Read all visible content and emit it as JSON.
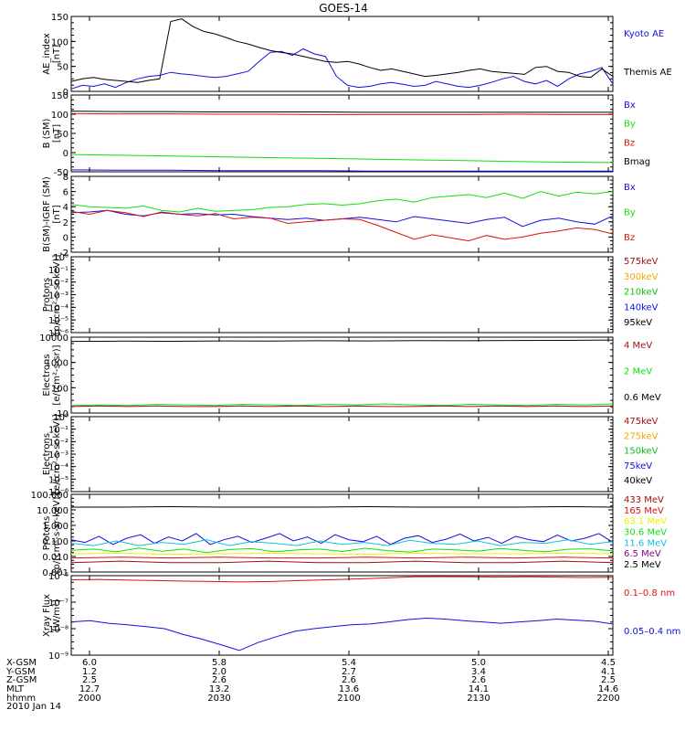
{
  "title": "GOES-14",
  "colors": {
    "black": "#000000",
    "blue": "#1010e0",
    "red": "#e01010",
    "green": "#10e010",
    "orange": "#f0a800",
    "yellow": "#f0f000",
    "darkred": "#a01010",
    "cyan": "#10c0e0",
    "purple": "#900090"
  },
  "chart_data": [
    {
      "type": "line",
      "ylabel": [
        "AE_index",
        "[nT]"
      ],
      "ylim": [
        0,
        150
      ],
      "yticks": [
        "0",
        "50",
        "100",
        "150"
      ],
      "legend": [
        {
          "label": "Kyoto AE",
          "color": "#1010e0"
        },
        {
          "label": "Themis AE",
          "color": "#000000"
        }
      ],
      "series": [
        {
          "name": "Kyoto AE",
          "color": "#1010e0",
          "values": [
            5,
            12,
            10,
            15,
            8,
            18,
            25,
            30,
            32,
            38,
            35,
            33,
            30,
            28,
            30,
            35,
            40,
            60,
            78,
            80,
            72,
            85,
            75,
            70,
            30,
            12,
            8,
            10,
            15,
            18,
            14,
            10,
            12,
            20,
            15,
            10,
            8,
            12,
            18,
            25,
            30,
            20,
            15,
            22,
            10,
            25,
            35,
            40,
            48,
            15
          ]
        },
        {
          "name": "Themis AE",
          "color": "#000000",
          "values": [
            20,
            25,
            28,
            24,
            22,
            20,
            18,
            22,
            25,
            140,
            145,
            130,
            120,
            115,
            108,
            100,
            95,
            88,
            82,
            78,
            75,
            70,
            65,
            60,
            58,
            60,
            55,
            48,
            42,
            45,
            40,
            35,
            30,
            32,
            35,
            38,
            42,
            45,
            40,
            38,
            36,
            34,
            48,
            50,
            40,
            38,
            30,
            28,
            45,
            30
          ]
        }
      ]
    },
    {
      "type": "line",
      "ylabel": [
        "B (SM)",
        "[nT]"
      ],
      "ylim": [
        -50,
        150
      ],
      "yticks": [
        "-50",
        "0",
        "50",
        "100",
        "150"
      ],
      "legend": [
        {
          "label": "Bx",
          "color": "#1010e0"
        },
        {
          "label": "By",
          "color": "#10e010"
        },
        {
          "label": "Bz",
          "color": "#e01010"
        },
        {
          "label": "Bmag",
          "color": "#000000"
        }
      ],
      "series": [
        {
          "name": "Bmag",
          "color": "#000000",
          "values": [
            108,
            107,
            107,
            106,
            106,
            106,
            105,
            105,
            105,
            105,
            105,
            105
          ]
        },
        {
          "name": "Bz",
          "color": "#e01010",
          "values": [
            102,
            101,
            101,
            100,
            100,
            99,
            99,
            99,
            99,
            100,
            99,
            99
          ]
        },
        {
          "name": "By",
          "color": "#10e010",
          "values": [
            -5,
            -7,
            -9,
            -11,
            -13,
            -15,
            -17,
            -19,
            -21,
            -23,
            -25,
            -26
          ]
        },
        {
          "name": "Bx",
          "color": "#1010e0",
          "values": [
            -45,
            -46,
            -46,
            -47,
            -47,
            -47,
            -48,
            -48,
            -48,
            -48,
            -48,
            -48
          ]
        }
      ]
    },
    {
      "type": "line",
      "ylabel": [
        "B(SM)-IGRF (SM)",
        "[nT]"
      ],
      "ylim": [
        -2,
        8
      ],
      "yticks": [
        "-2",
        "0",
        "2",
        "4",
        "6",
        "8"
      ],
      "legend": [
        {
          "label": "Bx",
          "color": "#1010e0"
        },
        {
          "label": "By",
          "color": "#10e010"
        },
        {
          "label": "Bz",
          "color": "#e01010"
        }
      ],
      "series": [
        {
          "name": "By",
          "color": "#10e010",
          "values": [
            4.3,
            4.0,
            3.9,
            3.8,
            4.1,
            3.5,
            3.3,
            3.8,
            3.4,
            3.5,
            3.6,
            3.9,
            4.0,
            4.3,
            4.4,
            4.2,
            4.4,
            4.8,
            5.0,
            4.6,
            5.2,
            5.4,
            5.6,
            5.2,
            5.8,
            5.1,
            6.0,
            5.4,
            5.9,
            5.7,
            6.0
          ]
        },
        {
          "name": "Bx",
          "color": "#1010e0",
          "values": [
            3.2,
            3.3,
            3.5,
            3.0,
            2.8,
            3.2,
            3.0,
            3.1,
            2.9,
            3.0,
            2.7,
            2.5,
            2.3,
            2.5,
            2.2,
            2.4,
            2.6,
            2.3,
            2.0,
            2.7,
            2.4,
            2.1,
            1.8,
            2.3,
            2.6,
            1.4,
            2.2,
            2.5,
            2.0,
            1.7,
            2.8
          ]
        },
        {
          "name": "Bz",
          "color": "#e01010",
          "values": [
            3.4,
            3.0,
            3.5,
            3.2,
            2.7,
            3.3,
            3.0,
            2.8,
            3.1,
            2.4,
            2.6,
            2.5,
            1.8,
            2.0,
            2.2,
            2.4,
            2.3,
            1.5,
            0.6,
            -0.3,
            0.3,
            -0.1,
            -0.5,
            0.2,
            -0.3,
            0.0,
            0.5,
            0.8,
            1.2,
            1.0,
            0.4
          ]
        }
      ]
    },
    {
      "type": "line",
      "ylabel": [
        "Protons",
        "[p/(cm²-s-sr-keV)]"
      ],
      "ylim": [
        1e-06,
        1
      ],
      "log": true,
      "yticks": [
        "10⁻⁶",
        "10⁻⁵",
        "10⁻⁴",
        "10⁻³",
        "10⁻²",
        "10⁻¹",
        "10⁰"
      ],
      "legend": [
        {
          "label": "575keV",
          "color": "#a01010"
        },
        {
          "label": "300keV",
          "color": "#f0a800"
        },
        {
          "label": "210keV",
          "color": "#10c010"
        },
        {
          "label": "140keV",
          "color": "#1010e0"
        },
        {
          "label": "95keV",
          "color": "#000000"
        }
      ],
      "series": []
    },
    {
      "type": "line",
      "ylabel": [
        "Electrons",
        "[e/(cm²-s-sr)]"
      ],
      "ylim": [
        10,
        10000
      ],
      "log": true,
      "yticks": [
        "10",
        "100",
        "1000",
        "10000"
      ],
      "legend": [
        {
          "label": "4 MeV",
          "color": "#a01010"
        },
        {
          "label": "2 MeV",
          "color": "#10e010"
        },
        {
          "label": "0.6 MeV",
          "color": "#000000"
        }
      ],
      "series": [
        {
          "name": "0.6 MeV",
          "color": "#000000",
          "values": [
            6800,
            7000,
            6900,
            7100,
            7000,
            7200,
            7100,
            7300,
            7200,
            7400,
            7500,
            7700
          ]
        },
        {
          "name": "2 MeV",
          "color": "#10e010",
          "values": [
            20,
            21,
            20,
            22,
            21,
            20,
            22,
            21,
            20,
            22,
            21,
            23,
            21,
            20,
            22,
            21,
            20,
            22,
            21,
            23
          ]
        },
        {
          "name": "4 MeV",
          "color": "#a01010",
          "values": [
            18,
            19,
            18,
            19,
            18,
            18,
            19,
            18,
            19,
            18,
            19,
            18,
            18,
            19,
            18,
            19,
            18,
            19,
            18,
            19
          ]
        }
      ]
    },
    {
      "type": "line",
      "ylabel": [
        "Electrons",
        "[e/(cm²-s-sr-keV)]"
      ],
      "ylim": [
        1e-06,
        1
      ],
      "log": true,
      "yticks": [
        "10⁻⁶",
        "10⁻⁵",
        "10⁻⁴",
        "10⁻³",
        "10⁻²",
        "10⁻¹",
        "10⁰"
      ],
      "legend": [
        {
          "label": "475keV",
          "color": "#a01010"
        },
        {
          "label": "275keV",
          "color": "#f0a800"
        },
        {
          "label": "150keV",
          "color": "#10c010"
        },
        {
          "label": "75keV",
          "color": "#1010e0"
        },
        {
          "label": "40keV",
          "color": "#000000"
        }
      ],
      "series": []
    },
    {
      "type": "line",
      "ylabel": [
        "Protons",
        "[p/(cm²-s-sr-keV)]"
      ],
      "ylim": [
        0.001,
        100
      ],
      "log": true,
      "yticks": [
        "0.001",
        "0.010",
        "0.100",
        "1.000",
        "10.000",
        "100.000"
      ],
      "legend": [
        {
          "label": "433 MeV",
          "color": "#a01010"
        },
        {
          "label": "165 MeV",
          "color": "#e01010"
        },
        {
          "label": "63.1 MeV",
          "color": "#f0f000"
        },
        {
          "label": "30.6 MeV",
          "color": "#10e010"
        },
        {
          "label": "11.6 MeV",
          "color": "#10c0e0"
        },
        {
          "label": "6.5 MeV",
          "color": "#900090"
        },
        {
          "label": "2.5 MeV",
          "color": "#000000"
        }
      ],
      "series": [
        {
          "name": "2.5 MeV",
          "color": "#000000",
          "values": [
            15,
            15,
            16,
            15,
            15,
            15,
            16,
            15,
            15,
            15,
            16,
            15
          ]
        },
        {
          "name": "6.5 MeV",
          "color": "#1010e0",
          "values": [
            0.12,
            0.08,
            0.2,
            0.06,
            0.15,
            0.25,
            0.07,
            0.18,
            0.1,
            0.3,
            0.06,
            0.12,
            0.2,
            0.08,
            0.15,
            0.3,
            0.1,
            0.18,
            0.07,
            0.25,
            0.12,
            0.09,
            0.2,
            0.06,
            0.15,
            0.22,
            0.08,
            0.13,
            0.28,
            0.1,
            0.17,
            0.07,
            0.2,
            0.12,
            0.09,
            0.24,
            0.1,
            0.15,
            0.3,
            0.08
          ]
        },
        {
          "name": "11.6 MeV",
          "color": "#10c0e0",
          "values": [
            0.07,
            0.05,
            0.1,
            0.05,
            0.08,
            0.06,
            0.12,
            0.05,
            0.09,
            0.07,
            0.05,
            0.1,
            0.06,
            0.08,
            0.05,
            0.11,
            0.07,
            0.06,
            0.1,
            0.05,
            0.08,
            0.07,
            0.12,
            0.06,
            0.09
          ]
        },
        {
          "name": "30.6 MeV",
          "color": "#10e010",
          "values": [
            0.025,
            0.03,
            0.02,
            0.035,
            0.022,
            0.03,
            0.018,
            0.028,
            0.032,
            0.02,
            0.026,
            0.03,
            0.021,
            0.034,
            0.024,
            0.019,
            0.03,
            0.027,
            0.022,
            0.033,
            0.025,
            0.02,
            0.029,
            0.031,
            0.023
          ]
        },
        {
          "name": "63.1 MeV",
          "color": "#f0f000",
          "values": [
            0.015,
            0.016,
            0.014,
            0.015,
            0.016,
            0.015,
            0.014,
            0.016,
            0.015,
            0.015,
            0.016,
            0.015
          ]
        },
        {
          "name": "165 MeV",
          "color": "#e01010",
          "values": [
            0.008,
            0.009,
            0.008,
            0.009,
            0.008,
            0.008,
            0.009,
            0.008,
            0.009,
            0.008,
            0.009,
            0.008
          ]
        },
        {
          "name": "433 MeV",
          "color": "#a01010",
          "values": [
            0.004,
            0.005,
            0.004,
            0.004,
            0.005,
            0.004,
            0.004,
            0.005,
            0.004,
            0.004,
            0.005,
            0.004
          ]
        }
      ]
    },
    {
      "type": "line",
      "ylabel": [
        "Xray Flux",
        "[W/m²]"
      ],
      "ylim": [
        1e-09,
        1e-06
      ],
      "log": true,
      "yticks": [
        "10⁻⁹",
        "10⁻⁸",
        "10⁻⁷",
        "10⁻⁶"
      ],
      "legend": [
        {
          "label": "0.1–0.8 nm",
          "color": "#e01010"
        },
        {
          "label": "0.05–0.4 nm",
          "color": "#1010e0"
        }
      ],
      "series": [
        {
          "name": "0.1–0.8 nm",
          "color": "#e01010",
          "values": [
            7e-07,
            7.2e-07,
            6.8e-07,
            6.5e-07,
            6.2e-07,
            6e-07,
            5.8e-07,
            6e-07,
            6.5e-07,
            7e-07,
            7.5e-07,
            8.2e-07,
            9e-07,
            9.2e-07,
            9e-07,
            8.8e-07,
            9e-07,
            8.8e-07,
            8.5e-07,
            8.7e-07
          ]
        },
        {
          "name": "0.05–0.4 nm",
          "color": "#1010e0",
          "values": [
            1.8e-08,
            2e-08,
            1.6e-08,
            1.4e-08,
            1.2e-08,
            1e-08,
            6e-09,
            4e-09,
            2.5e-09,
            1.5e-09,
            3e-09,
            5e-09,
            8e-09,
            1e-08,
            1.2e-08,
            1.4e-08,
            1.5e-08,
            1.8e-08,
            2.2e-08,
            2.5e-08,
            2.3e-08,
            2e-08,
            1.8e-08,
            1.6e-08,
            1.8e-08,
            2e-08,
            2.3e-08,
            2.1e-08,
            1.9e-08,
            1.5e-08
          ]
        }
      ]
    }
  ],
  "x_axis": {
    "row_labels": [
      "X-GSM",
      "Y-GSM",
      "Z-GSM",
      "MLT",
      "hhmm"
    ],
    "date": "2010 Jan 14",
    "columns": [
      [
        "6.0",
        "1.2",
        "2.5",
        "12.7",
        "2000"
      ],
      [
        "5.8",
        "2.0",
        "2.6",
        "13.2",
        "2030"
      ],
      [
        "5.4",
        "2.7",
        "2.6",
        "13.6",
        "2100"
      ],
      [
        "5.0",
        "3.4",
        "2.6",
        "14.1",
        "2130"
      ],
      [
        "4.5",
        "4.1",
        "2.5",
        "14.6",
        "2200"
      ]
    ]
  }
}
